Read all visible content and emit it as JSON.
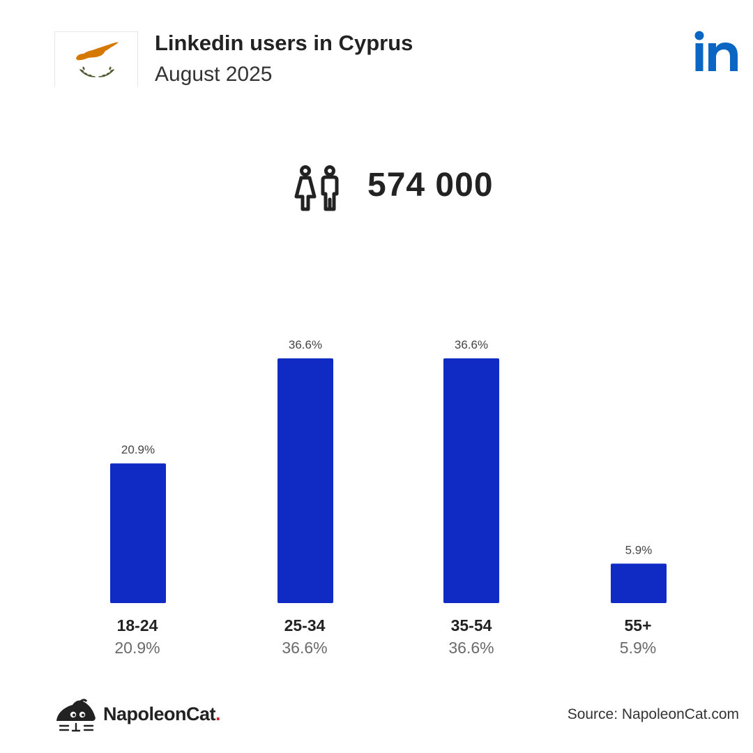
{
  "header": {
    "title": "Linkedin users in Cyprus",
    "subtitle": "August 2025"
  },
  "flag": {
    "icon": "cyprus-flag-icon",
    "island_color": "#d57800",
    "branch_color": "#4e5b31"
  },
  "platform_logo": {
    "icon": "linkedin-icon",
    "text": "in",
    "color": "#0a66c2"
  },
  "total_users": {
    "icon": "users-icon",
    "value": "574 000"
  },
  "chart_data": {
    "type": "bar",
    "categories": [
      "18-24",
      "25-34",
      "35-54",
      "55+"
    ],
    "values": [
      20.9,
      36.6,
      36.6,
      5.9
    ],
    "value_labels": [
      "20.9%",
      "36.6%",
      "36.6%",
      "5.9%"
    ],
    "unit": "%",
    "bar_color": "#0f2bc4",
    "ylim": [
      0,
      36.6
    ],
    "grid": false,
    "legend": "none"
  },
  "footer": {
    "brand": "NapoleonCat",
    "brand_dot": ".",
    "brand_dot_color": "#e0242a",
    "source": "Source: NapoleonCat.com"
  }
}
